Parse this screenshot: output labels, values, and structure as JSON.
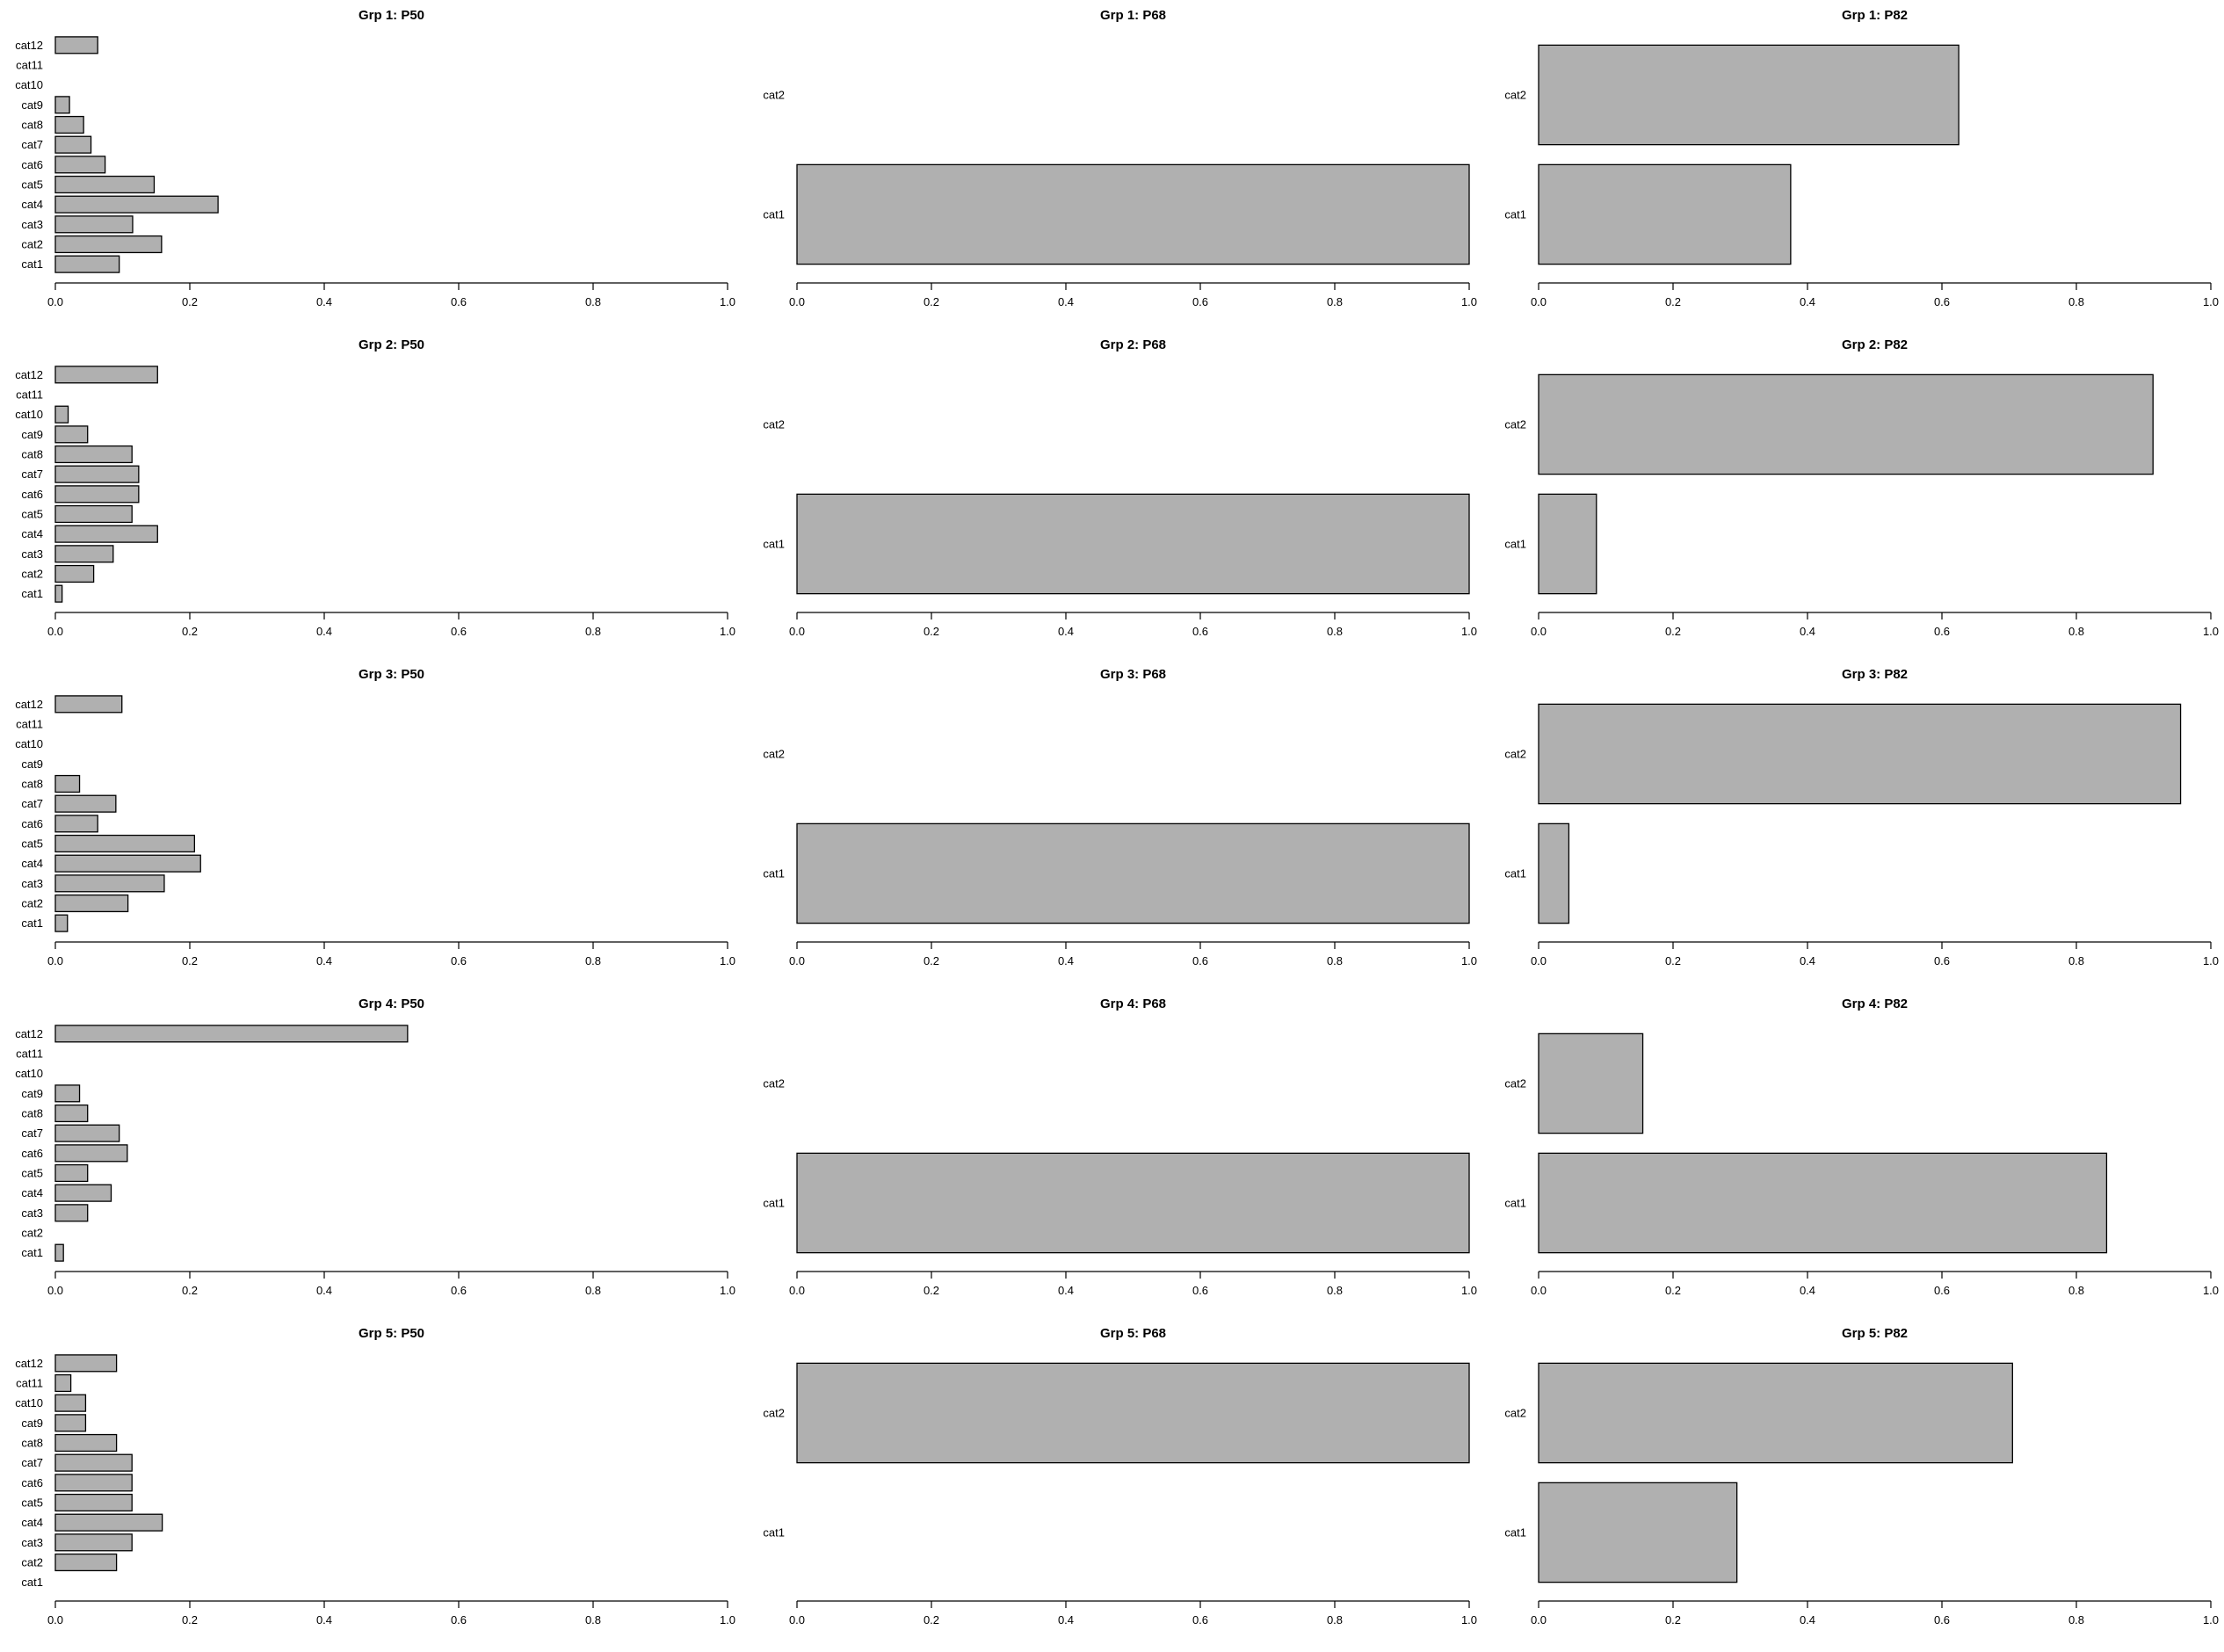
{
  "figure": {
    "bar_fill": "#b0b0b0",
    "bar_stroke": "#000000"
  },
  "chart_data": [
    {
      "type": "bar",
      "orientation": "horizontal",
      "title": "Grp 1: P50",
      "categories": [
        "cat1",
        "cat2",
        "cat3",
        "cat4",
        "cat5",
        "cat6",
        "cat7",
        "cat8",
        "cat9",
        "cat10",
        "cat11",
        "cat12"
      ],
      "values": [
        0.095,
        0.158,
        0.115,
        0.242,
        0.147,
        0.074,
        0.053,
        0.042,
        0.021,
        0,
        0,
        0.063
      ],
      "xlim": [
        0,
        1
      ],
      "xticks": [
        "0.0",
        "0.2",
        "0.4",
        "0.6",
        "0.8",
        "1.0"
      ]
    },
    {
      "type": "bar",
      "orientation": "horizontal",
      "title": "Grp 1: P68",
      "categories": [
        "cat1",
        "cat2"
      ],
      "values": [
        1.0,
        0
      ],
      "xlim": [
        0,
        1
      ],
      "xticks": [
        "0.0",
        "0.2",
        "0.4",
        "0.6",
        "0.8",
        "1.0"
      ]
    },
    {
      "type": "bar",
      "orientation": "horizontal",
      "title": "Grp 1: P82",
      "categories": [
        "cat1",
        "cat2"
      ],
      "values": [
        0.375,
        0.625
      ],
      "xlim": [
        0,
        1
      ],
      "xticks": [
        "0.0",
        "0.2",
        "0.4",
        "0.6",
        "0.8",
        "1.0"
      ]
    },
    {
      "type": "bar",
      "orientation": "horizontal",
      "title": "Grp 2: P50",
      "categories": [
        "cat1",
        "cat2",
        "cat3",
        "cat4",
        "cat5",
        "cat6",
        "cat7",
        "cat8",
        "cat9",
        "cat10",
        "cat11",
        "cat12"
      ],
      "values": [
        0.01,
        0.057,
        0.086,
        0.152,
        0.114,
        0.124,
        0.124,
        0.114,
        0.048,
        0.019,
        0,
        0.152
      ],
      "xlim": [
        0,
        1
      ],
      "xticks": [
        "0.0",
        "0.2",
        "0.4",
        "0.6",
        "0.8",
        "1.0"
      ]
    },
    {
      "type": "bar",
      "orientation": "horizontal",
      "title": "Grp 2: P68",
      "categories": [
        "cat1",
        "cat2"
      ],
      "values": [
        1.0,
        0
      ],
      "xlim": [
        0,
        1
      ],
      "xticks": [
        "0.0",
        "0.2",
        "0.4",
        "0.6",
        "0.8",
        "1.0"
      ]
    },
    {
      "type": "bar",
      "orientation": "horizontal",
      "title": "Grp 2: P82",
      "categories": [
        "cat1",
        "cat2"
      ],
      "values": [
        0.086,
        0.914
      ],
      "xlim": [
        0,
        1
      ],
      "xticks": [
        "0.0",
        "0.2",
        "0.4",
        "0.6",
        "0.8",
        "1.0"
      ]
    },
    {
      "type": "bar",
      "orientation": "horizontal",
      "title": "Grp 3: P50",
      "categories": [
        "cat1",
        "cat2",
        "cat3",
        "cat4",
        "cat5",
        "cat6",
        "cat7",
        "cat8",
        "cat9",
        "cat10",
        "cat11",
        "cat12"
      ],
      "values": [
        0.018,
        0.108,
        0.162,
        0.216,
        0.207,
        0.063,
        0.09,
        0.036,
        0,
        0,
        0,
        0.099
      ],
      "xlim": [
        0,
        1
      ],
      "xticks": [
        "0.0",
        "0.2",
        "0.4",
        "0.6",
        "0.8",
        "1.0"
      ]
    },
    {
      "type": "bar",
      "orientation": "horizontal",
      "title": "Grp 3: P68",
      "categories": [
        "cat1",
        "cat2"
      ],
      "values": [
        1.0,
        0
      ],
      "xlim": [
        0,
        1
      ],
      "xticks": [
        "0.0",
        "0.2",
        "0.4",
        "0.6",
        "0.8",
        "1.0"
      ]
    },
    {
      "type": "bar",
      "orientation": "horizontal",
      "title": "Grp 3: P82",
      "categories": [
        "cat1",
        "cat2"
      ],
      "values": [
        0.045,
        0.955
      ],
      "xlim": [
        0,
        1
      ],
      "xticks": [
        "0.0",
        "0.2",
        "0.4",
        "0.6",
        "0.8",
        "1.0"
      ]
    },
    {
      "type": "bar",
      "orientation": "horizontal",
      "title": "Grp 4: P50",
      "categories": [
        "cat1",
        "cat2",
        "cat3",
        "cat4",
        "cat5",
        "cat6",
        "cat7",
        "cat8",
        "cat9",
        "cat10",
        "cat11",
        "cat12"
      ],
      "values": [
        0.012,
        0,
        0.048,
        0.083,
        0.048,
        0.107,
        0.095,
        0.048,
        0.036,
        0,
        0,
        0.524
      ],
      "xlim": [
        0,
        1
      ],
      "xticks": [
        "0.0",
        "0.2",
        "0.4",
        "0.6",
        "0.8",
        "1.0"
      ]
    },
    {
      "type": "bar",
      "orientation": "horizontal",
      "title": "Grp 4: P68",
      "categories": [
        "cat1",
        "cat2"
      ],
      "values": [
        1.0,
        0
      ],
      "xlim": [
        0,
        1
      ],
      "xticks": [
        "0.0",
        "0.2",
        "0.4",
        "0.6",
        "0.8",
        "1.0"
      ]
    },
    {
      "type": "bar",
      "orientation": "horizontal",
      "title": "Grp 4: P82",
      "categories": [
        "cat1",
        "cat2"
      ],
      "values": [
        0.845,
        0.155
      ],
      "xlim": [
        0,
        1
      ],
      "xticks": [
        "0.0",
        "0.2",
        "0.4",
        "0.6",
        "0.8",
        "1.0"
      ]
    },
    {
      "type": "bar",
      "orientation": "horizontal",
      "title": "Grp 5: P50",
      "categories": [
        "cat1",
        "cat2",
        "cat3",
        "cat4",
        "cat5",
        "cat6",
        "cat7",
        "cat8",
        "cat9",
        "cat10",
        "cat11",
        "cat12"
      ],
      "values": [
        0,
        0.091,
        0.114,
        0.159,
        0.114,
        0.114,
        0.114,
        0.091,
        0.045,
        0.045,
        0.023,
        0.091
      ],
      "xlim": [
        0,
        1
      ],
      "xticks": [
        "0.0",
        "0.2",
        "0.4",
        "0.6",
        "0.8",
        "1.0"
      ]
    },
    {
      "type": "bar",
      "orientation": "horizontal",
      "title": "Grp 5: P68",
      "categories": [
        "cat1",
        "cat2"
      ],
      "values": [
        0,
        1.0
      ],
      "xlim": [
        0,
        1
      ],
      "xticks": [
        "0.0",
        "0.2",
        "0.4",
        "0.6",
        "0.8",
        "1.0"
      ]
    },
    {
      "type": "bar",
      "orientation": "horizontal",
      "title": "Grp 5: P82",
      "categories": [
        "cat1",
        "cat2"
      ],
      "values": [
        0.295,
        0.705
      ],
      "xlim": [
        0,
        1
      ],
      "xticks": [
        "0.0",
        "0.2",
        "0.4",
        "0.6",
        "0.8",
        "1.0"
      ]
    }
  ]
}
